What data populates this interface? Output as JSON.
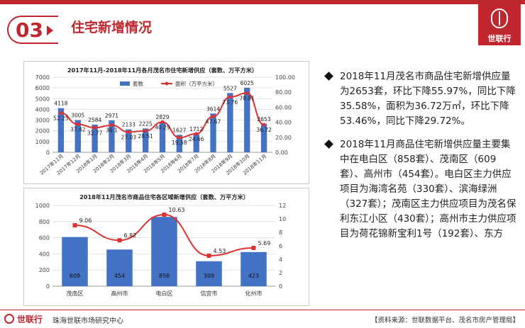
{
  "header": {
    "section_number": "03",
    "title": "住宅新增情况",
    "logo_text": "世联行",
    "accent_color": "#c0262d"
  },
  "bullets": [
    "2018年11月茂名市商品住宅新增供应量为2653套，环比下降55.97%，同比下降35.58%，面积为36.72万㎡，环比下降53.46%，同比下降29.72%。",
    "2018年11月商品住宅新增供应量主要集中在电白区（858套）、茂南区（609套）、高州市（454套）。电白区主力供应项目为海湾名苑（330套）、滨海绿洲（327套）；茂南区主力供应项目为茂名保利东江小区（430套）；高州市主力供应项目为荷花锦新宝利1号（192套）、东方"
  ],
  "footer": {
    "brand": "世联行",
    "org": "珠海世联市场研究中心",
    "source": "【资料来源：世联数据平台、茂名市房产管理局】"
  },
  "chart_data": [
    {
      "type": "bar",
      "title": "2017年11月-2018年11月各月茂名市住宅新增供应（套数、万平方米）",
      "categories": [
        "2017年11月",
        "2017年12月",
        "2018年1月",
        "2018年2月",
        "2018年3月",
        "2018年4月",
        "2018年5月",
        "2018年6月",
        "2018年7月",
        "2018年8月",
        "2018年9月",
        "2018年10月",
        "2018年11月"
      ],
      "series": [
        {
          "name": "套数",
          "type": "bar",
          "axis": "left",
          "color": "#4472c4",
          "values": [
            4118,
            3005,
            2584,
            2971,
            2133,
            2225,
            2829,
            1627,
            1712,
            3614,
            5527,
            6025,
            2653
          ]
        },
        {
          "name": "面积（万平方米）",
          "type": "line",
          "axis": "right",
          "color": "#e03030",
          "values": [
            52.25,
            37.42,
            32.77,
            36.1,
            27.03,
            28.51,
            40.29,
            19.58,
            24.66,
            47.67,
            73.76,
            78.91,
            36.72
          ]
        }
      ],
      "bar_labels": [
        "4118",
        "3005",
        "2584",
        "2971",
        "2133",
        "2225",
        "2829",
        "1627",
        "1712",
        "3614",
        "5527",
        "6025",
        "2653"
      ],
      "line_labels": [
        "52.25",
        "37.42",
        "32.77",
        "36.1",
        "27.03",
        "28.51",
        "40.29",
        "19.58",
        "24.66",
        "47.67",
        "73.76",
        "78.91",
        "36.72"
      ],
      "y_left_ticks": [
        "0",
        "1000",
        "2000",
        "3000",
        "4000",
        "5000",
        "6000",
        "7000"
      ],
      "y_right_ticks": [
        "0.00",
        "20.00",
        "40.00",
        "60.00",
        "80.00",
        "100.00"
      ],
      "ylim_left": [
        0,
        7000
      ],
      "ylim_right": [
        0,
        100
      ],
      "legend_position": "top"
    },
    {
      "type": "bar",
      "title": "2018年11月茂名市商品住宅各区域新增供应（套数、万平方米）",
      "categories": [
        "茂南区",
        "高州市",
        "电白区",
        "信宜市",
        "化州市"
      ],
      "series": [
        {
          "name": "套数",
          "type": "bar",
          "axis": "left",
          "color": "#4472c4",
          "values": [
            609,
            454,
            858,
            309,
            423
          ]
        },
        {
          "name": "面积",
          "type": "line",
          "axis": "right",
          "color": "#e03030",
          "values": [
            9.06,
            6.82,
            10.63,
            4.53,
            5.69
          ]
        }
      ],
      "bar_labels": [
        "609",
        "454",
        "858",
        "309",
        "423"
      ],
      "line_labels": [
        "9.06",
        "6.82",
        "10.63",
        "4.53",
        "5.69"
      ],
      "y_left_ticks": [
        "0",
        "200",
        "400",
        "600",
        "800",
        "1000"
      ],
      "y_right_ticks": [
        "0",
        "2",
        "4",
        "6",
        "8",
        "10",
        "12"
      ],
      "ylim_left": [
        0,
        1000
      ],
      "ylim_right": [
        0,
        12
      ]
    }
  ]
}
